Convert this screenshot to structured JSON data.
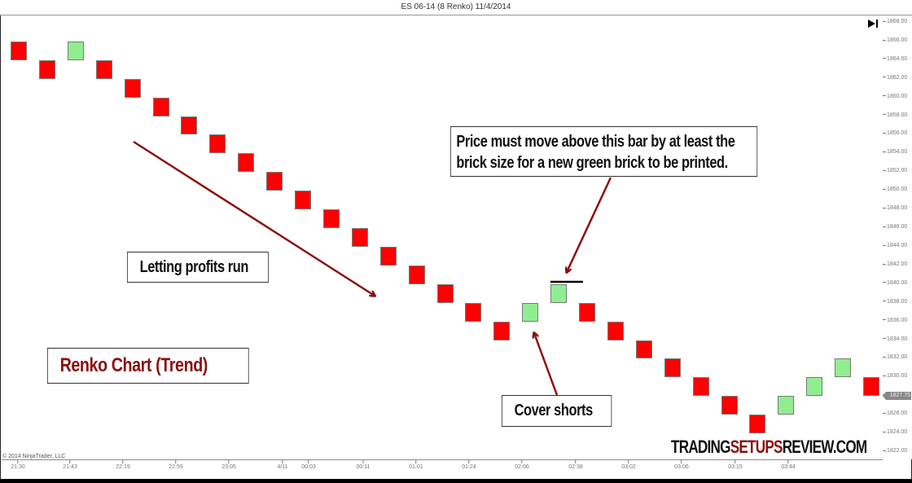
{
  "window": {
    "title": "ES 06-14 (8 Renko)  11/4/2014",
    "copyright": "© 2014 NinjaTrader, LLC"
  },
  "chart_data": {
    "type": "renko",
    "title": "ES 06-14 (8 Renko)  11/4/2014",
    "xlabel": "",
    "ylabel": "",
    "ylim": [
      1822,
      1868
    ],
    "grid": false,
    "y_ticks": [
      "1868.00",
      "1866.00",
      "1864.00",
      "1862.00",
      "1860.00",
      "1858.00",
      "1856.00",
      "1854.00",
      "1852.00",
      "1850.00",
      "1848.00",
      "1846.00",
      "1844.00",
      "1842.00",
      "1840.00",
      "1838.00",
      "1836.00",
      "1834.00",
      "1832.00",
      "1830.00",
      "1828.00",
      "1826.00",
      "1824.00",
      "1822.00"
    ],
    "x_ticks": [
      "21:30",
      "21:43",
      "22:19",
      "22:59",
      "23:05",
      "4/11",
      "00:03",
      "00:11",
      "01:01",
      "01:24",
      "02:06",
      "02:38",
      "03:02",
      "03:06",
      "03:15",
      "03:44"
    ],
    "last_price": "1827.75",
    "brick_size": 2,
    "bricks": [
      {
        "index": 1,
        "direction": "down",
        "top": 1866,
        "bottom": 1864
      },
      {
        "index": 2,
        "direction": "down",
        "top": 1864,
        "bottom": 1862
      },
      {
        "index": 3,
        "direction": "up",
        "top": 1866,
        "bottom": 1864
      },
      {
        "index": 4,
        "direction": "down",
        "top": 1864,
        "bottom": 1862
      },
      {
        "index": 5,
        "direction": "down",
        "top": 1862,
        "bottom": 1860
      },
      {
        "index": 6,
        "direction": "down",
        "top": 1860,
        "bottom": 1858
      },
      {
        "index": 7,
        "direction": "down",
        "top": 1858,
        "bottom": 1856
      },
      {
        "index": 8,
        "direction": "down",
        "top": 1856,
        "bottom": 1854
      },
      {
        "index": 9,
        "direction": "down",
        "top": 1854,
        "bottom": 1852
      },
      {
        "index": 10,
        "direction": "down",
        "top": 1852,
        "bottom": 1850
      },
      {
        "index": 11,
        "direction": "down",
        "top": 1850,
        "bottom": 1848
      },
      {
        "index": 12,
        "direction": "down",
        "top": 1848,
        "bottom": 1846
      },
      {
        "index": 13,
        "direction": "down",
        "top": 1846,
        "bottom": 1844
      },
      {
        "index": 14,
        "direction": "down",
        "top": 1844,
        "bottom": 1842
      },
      {
        "index": 15,
        "direction": "down",
        "top": 1842,
        "bottom": 1840
      },
      {
        "index": 16,
        "direction": "down",
        "top": 1840,
        "bottom": 1838
      },
      {
        "index": 17,
        "direction": "down",
        "top": 1838,
        "bottom": 1836
      },
      {
        "index": 18,
        "direction": "down",
        "top": 1836,
        "bottom": 1834
      },
      {
        "index": 19,
        "direction": "up",
        "top": 1838,
        "bottom": 1836
      },
      {
        "index": 20,
        "direction": "up",
        "top": 1840,
        "bottom": 1838
      },
      {
        "index": 21,
        "direction": "down",
        "top": 1838,
        "bottom": 1836
      },
      {
        "index": 22,
        "direction": "down",
        "top": 1836,
        "bottom": 1834
      },
      {
        "index": 23,
        "direction": "down",
        "top": 1834,
        "bottom": 1832
      },
      {
        "index": 24,
        "direction": "down",
        "top": 1832,
        "bottom": 1830
      },
      {
        "index": 25,
        "direction": "down",
        "top": 1830,
        "bottom": 1828
      },
      {
        "index": 26,
        "direction": "down",
        "top": 1828,
        "bottom": 1826
      },
      {
        "index": 27,
        "direction": "down",
        "top": 1826,
        "bottom": 1824
      },
      {
        "index": 28,
        "direction": "up",
        "top": 1828,
        "bottom": 1826
      },
      {
        "index": 29,
        "direction": "up",
        "top": 1830,
        "bottom": 1828
      },
      {
        "index": 30,
        "direction": "up",
        "top": 1832,
        "bottom": 1830
      },
      {
        "index": 31,
        "direction": "down",
        "top": 1830,
        "bottom": 1828
      }
    ],
    "colors": {
      "up": "#90ee90",
      "down": "#ff0000",
      "annotation": "#8b1010"
    },
    "annotations": [
      {
        "text": "Price must move above this bar by at least the brick size for a new green brick to be printed.",
        "target": "brick 20 top (1840)"
      },
      {
        "text": "Letting profits run",
        "type": "arrow down-trend"
      },
      {
        "text": "Renko Chart (Trend)",
        "type": "label"
      },
      {
        "text": "Cover shorts",
        "target": "brick 19"
      }
    ]
  },
  "callouts": {
    "price_rule_line1": "Price must move above this bar by at least the",
    "price_rule_line2": "brick size for a new green brick to be printed.",
    "letting_profits": "Letting profits run",
    "chart_label": "Renko Chart (Trend)",
    "cover_shorts": "Cover shorts"
  },
  "logo": {
    "part1": "TRADING",
    "part2": "SETUPS",
    "part3": "REVIEW.COM"
  }
}
